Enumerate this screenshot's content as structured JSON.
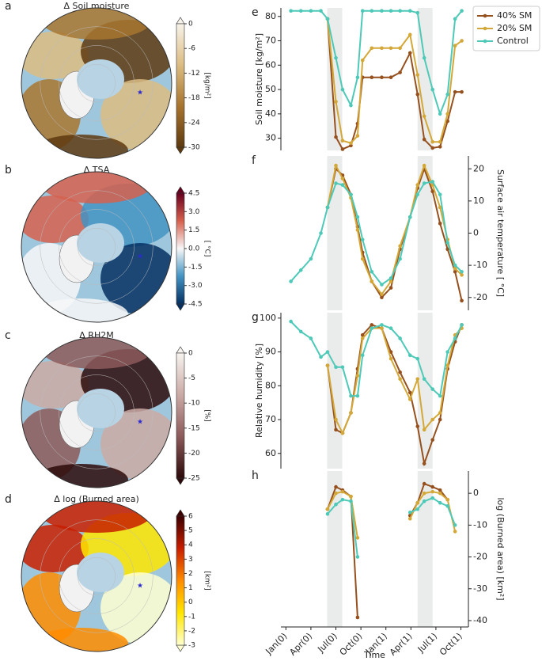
{
  "maps": [
    {
      "panel": "a",
      "title": "Δ Soil moisture",
      "colorbar": {
        "label": "[kg/m²]",
        "lim": [
          -30,
          0
        ],
        "ticks": [
          0,
          -6,
          -12,
          -18,
          -24,
          -30
        ],
        "colors": [
          "#f7f3ea",
          "#dcbc82",
          "#a8752f",
          "#5e3a10"
        ]
      }
    },
    {
      "panel": "b",
      "title": "Δ TSA",
      "colorbar": {
        "label": "[ °C]",
        "lim": [
          -4.5,
          4.5
        ],
        "ticks": [
          4.5,
          {
            "value": 3,
            "label": "3.0"
          },
          1.5,
          {
            "value": 0,
            "label": "0.0"
          },
          -1.5,
          {
            "value": -3,
            "label": "-3.0"
          },
          -4.5
        ],
        "colors": [
          "#67001f",
          "#d6604d",
          "#f7f7f7",
          "#4393c3",
          "#053061"
        ]
      }
    },
    {
      "panel": "c",
      "title": "Δ RH2M",
      "colorbar": {
        "label": "[%]",
        "lim": [
          -25,
          0
        ],
        "ticks": [
          0,
          -5,
          -10,
          -15,
          -20,
          -25
        ],
        "colors": [
          "#f7f4f0",
          "#cbaaa5",
          "#8c5a5a",
          "#2d0a0a"
        ]
      }
    },
    {
      "panel": "d",
      "title": "Δ log (Burned area)",
      "colorbar": {
        "label": "[km²]",
        "lim": [
          -3,
          6
        ],
        "ticks": [
          6,
          5,
          4,
          3,
          2,
          1,
          0,
          -1,
          -2,
          -3
        ],
        "colors": [
          "#3d0000",
          "#c81e00",
          "#ff8c00",
          "#ffe600",
          "#ffffd0"
        ]
      }
    }
  ],
  "shaded_spans": [
    [
      4.95,
      6.76
    ],
    [
      15.8,
      17.6
    ]
  ],
  "chart_data": [
    {
      "type": "line",
      "panel": "e",
      "ylabel": "Soil moisture [kg/m²]",
      "yaxis": "left",
      "legend": "upper right",
      "x": [
        0.6,
        1.8,
        3.0,
        4.2,
        5.0,
        6.0,
        6.8,
        7.8,
        8.6,
        9.2,
        10.3,
        11.5,
        12.6,
        13.7,
        14.9,
        15.8,
        16.6,
        17.6,
        18.5,
        19.4,
        20.3,
        21.1
      ],
      "xlim": [
        -0.6,
        21.9
      ],
      "ylim": [
        25,
        83.5
      ],
      "yticks": [
        30,
        40,
        50,
        60,
        70,
        80
      ],
      "series": [
        {
          "name": "40% SM",
          "color": "#96501e",
          "values": [
            null,
            null,
            null,
            null,
            79,
            30.5,
            25.5,
            27,
            36,
            55,
            55,
            55,
            55,
            57,
            65,
            48,
            29.5,
            26,
            26.5,
            37,
            49,
            49
          ]
        },
        {
          "name": "20% SM",
          "color": "#d4a838",
          "values": [
            null,
            null,
            null,
            null,
            79,
            45,
            29,
            28,
            31,
            62,
            67,
            67,
            67,
            67,
            72.5,
            56,
            39,
            28.5,
            28.5,
            40,
            68,
            70
          ]
        },
        {
          "name": "Control",
          "color": "#4ec9b8",
          "values": [
            82.3,
            82.3,
            82.3,
            82.3,
            79,
            63,
            50,
            43.5,
            55,
            82.3,
            82.3,
            82.3,
            82.3,
            82.3,
            82.3,
            81.5,
            63,
            50,
            40,
            48,
            79,
            82.3
          ]
        }
      ]
    },
    {
      "type": "line",
      "panel": "f",
      "ylabel": "Surface air temperature [ °C]",
      "yaxis": "right",
      "x": [
        0.6,
        1.8,
        3.0,
        4.2,
        5.0,
        6.0,
        6.8,
        7.8,
        8.6,
        9.2,
        10.3,
        11.5,
        12.6,
        13.7,
        14.9,
        15.8,
        16.6,
        17.6,
        18.5,
        19.4,
        20.3,
        21.1
      ],
      "xlim": [
        -0.6,
        21.9
      ],
      "ylim": [
        -24,
        24
      ],
      "yticks": [
        -20,
        -10,
        0,
        10,
        20
      ],
      "series": [
        {
          "name": "40% SM",
          "color": "#96501e",
          "values": [
            null,
            null,
            null,
            null,
            8,
            20,
            18,
            12,
            2,
            -6,
            -15,
            -20,
            -17,
            -5,
            5,
            14,
            20,
            13,
            3,
            -5,
            -12,
            -21
          ]
        },
        {
          "name": "20% SM",
          "color": "#d4a838",
          "values": [
            null,
            null,
            null,
            null,
            8,
            21,
            17,
            11,
            1,
            -8,
            -15,
            -19,
            -15,
            -4,
            5,
            15,
            21,
            15,
            8,
            -2,
            -11,
            -13
          ]
        },
        {
          "name": "Control",
          "color": "#4ec9b8",
          "values": [
            -15,
            -11.5,
            -8,
            0,
            8,
            15.5,
            15,
            12,
            5,
            -2,
            -12,
            -16,
            -14,
            -8,
            5,
            12,
            15.5,
            16,
            12,
            -3,
            -10,
            -12
          ]
        }
      ]
    },
    {
      "type": "line",
      "panel": "g",
      "ylabel": "Relative humidity [%]",
      "yaxis": "left",
      "x": [
        0.6,
        1.8,
        3.0,
        4.2,
        5.0,
        6.0,
        6.8,
        7.8,
        8.6,
        9.2,
        10.3,
        11.5,
        12.6,
        13.7,
        14.9,
        15.8,
        16.6,
        17.6,
        18.5,
        19.4,
        20.3,
        21.1
      ],
      "xlim": [
        -0.6,
        21.9
      ],
      "ylim": [
        55.5,
        101.6
      ],
      "yticks": [
        60,
        70,
        80,
        90,
        100
      ],
      "series": [
        {
          "name": "40% SM",
          "color": "#96501e",
          "values": [
            null,
            null,
            null,
            null,
            86,
            67,
            66,
            72,
            85,
            95,
            98,
            97,
            90,
            84,
            78,
            68,
            57,
            64,
            70,
            85,
            93,
            98
          ]
        },
        {
          "name": "20% SM",
          "color": "#d4a838",
          "values": [
            null,
            null,
            null,
            null,
            86,
            70,
            66,
            72,
            83,
            94,
            97,
            97,
            88,
            82,
            76,
            82,
            67,
            70,
            72,
            86,
            95,
            97
          ]
        },
        {
          "name": "Control",
          "color": "#4ec9b8",
          "values": [
            99,
            96,
            94,
            88.5,
            90,
            85.5,
            85.5,
            77,
            77,
            89,
            97,
            98,
            97,
            94,
            89,
            88,
            82,
            79,
            77,
            90,
            94,
            98
          ]
        }
      ]
    },
    {
      "type": "line",
      "panel": "h",
      "ylabel": "log (Burned area) [km²]",
      "yaxis": "right",
      "xlabel": "Time",
      "x": [
        0.6,
        1.8,
        3.0,
        4.2,
        5.0,
        6.0,
        6.8,
        7.8,
        8.6,
        9.2,
        10.3,
        11.5,
        12.6,
        13.7,
        14.9,
        15.8,
        16.6,
        17.6,
        18.5,
        19.4,
        20.3,
        21.1
      ],
      "xlim": [
        -0.6,
        21.9
      ],
      "ylim": [
        -42,
        7
      ],
      "yticks": [
        -40,
        -30,
        -20,
        -10,
        0
      ],
      "xticks": [
        {
          "value": 0,
          "label": "Jan(0)"
        },
        {
          "value": 3,
          "label": "Apr(0)"
        },
        {
          "value": 6,
          "label": "Jul(0)"
        },
        {
          "value": 9,
          "label": "Oct(0)"
        },
        {
          "value": 12,
          "label": "Jan(1)"
        },
        {
          "value": 15,
          "label": "Apr(1)"
        },
        {
          "value": 18,
          "label": "Jul(1)"
        },
        {
          "value": 21,
          "label": "Oct(1)"
        }
      ],
      "series": [
        {
          "name": "40% SM",
          "color": "#96501e",
          "values": [
            null,
            null,
            null,
            null,
            -5,
            2,
            1,
            -1,
            -39,
            null,
            null,
            null,
            null,
            null,
            -7,
            -3,
            3,
            2,
            1,
            -2,
            null,
            null
          ]
        },
        {
          "name": "20% SM",
          "color": "#d4a838",
          "values": [
            null,
            null,
            null,
            null,
            -5,
            0,
            0.5,
            -1,
            -14,
            null,
            null,
            null,
            null,
            null,
            -8,
            -3,
            0,
            0.5,
            0,
            -2,
            -12,
            null
          ]
        },
        {
          "name": "Control",
          "color": "#4ec9b8",
          "values": [
            null,
            null,
            null,
            null,
            -6.5,
            -3.5,
            -2,
            -2.5,
            -20,
            null,
            null,
            null,
            null,
            null,
            -6,
            -5,
            -2.5,
            -1.5,
            -3,
            -4,
            -10,
            null
          ]
        }
      ]
    }
  ]
}
